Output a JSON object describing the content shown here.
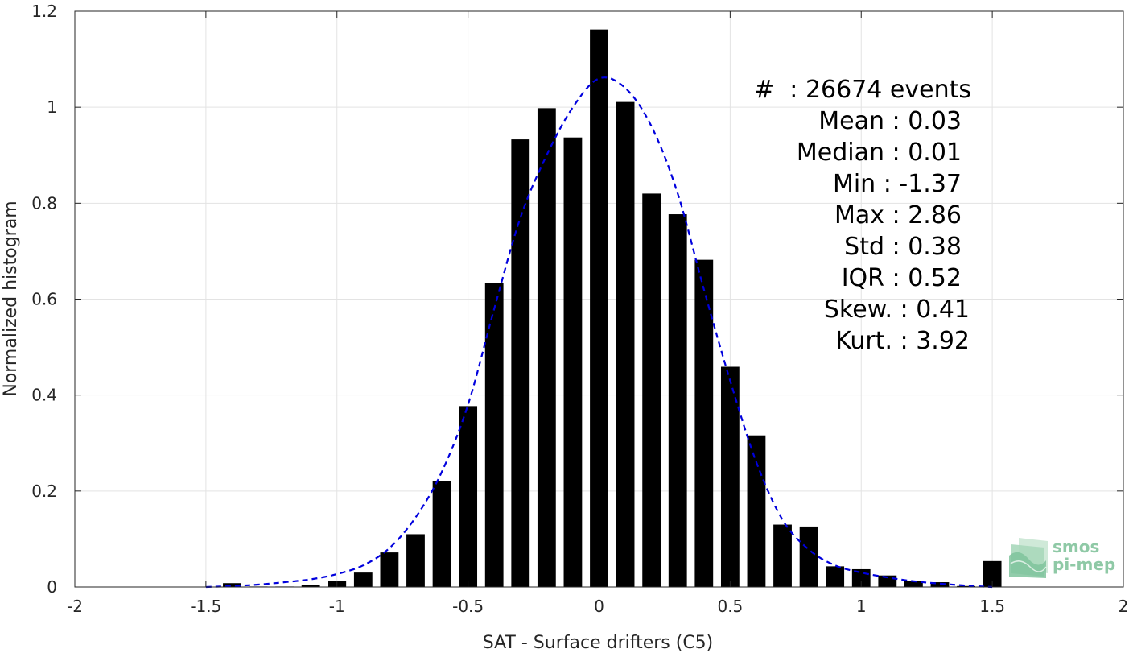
{
  "chart_data": {
    "type": "bar",
    "xlabel": "SAT - Surface drifters (C5)",
    "ylabel": "Normalized histogram",
    "xlim": [
      -2,
      2
    ],
    "ylim": [
      0,
      1.2
    ],
    "x_ticks": [
      -2,
      -1.5,
      -1,
      -0.5,
      0,
      0.5,
      1,
      1.5,
      2
    ],
    "y_ticks": [
      0,
      0.2,
      0.4,
      0.6,
      0.8,
      1,
      1.2
    ],
    "x_tick_labels": [
      "-2",
      "-1.5",
      "-1",
      "-0.5",
      "0",
      "0.5",
      "1",
      "1.5",
      "2"
    ],
    "y_tick_labels": [
      "0",
      "0.2",
      "0.4",
      "0.6",
      "0.8",
      "1",
      "1.2"
    ],
    "grid": true,
    "bar_color": "#000000",
    "bar_width": 0.07,
    "bars": [
      {
        "x": -1.4,
        "y": 0.008
      },
      {
        "x": -1.3,
        "y": 0.001
      },
      {
        "x": -1.2,
        "y": 0.001
      },
      {
        "x": -1.1,
        "y": 0.004
      },
      {
        "x": -1.0,
        "y": 0.013
      },
      {
        "x": -0.9,
        "y": 0.03
      },
      {
        "x": -0.8,
        "y": 0.072
      },
      {
        "x": -0.7,
        "y": 0.11
      },
      {
        "x": -0.6,
        "y": 0.22
      },
      {
        "x": -0.5,
        "y": 0.377
      },
      {
        "x": -0.4,
        "y": 0.634
      },
      {
        "x": -0.3,
        "y": 0.933
      },
      {
        "x": -0.2,
        "y": 0.998
      },
      {
        "x": -0.1,
        "y": 0.937
      },
      {
        "x": 0.0,
        "y": 1.162
      },
      {
        "x": 0.1,
        "y": 1.011
      },
      {
        "x": 0.2,
        "y": 0.82
      },
      {
        "x": 0.3,
        "y": 0.777
      },
      {
        "x": 0.4,
        "y": 0.682
      },
      {
        "x": 0.5,
        "y": 0.459
      },
      {
        "x": 0.6,
        "y": 0.316
      },
      {
        "x": 0.7,
        "y": 0.13
      },
      {
        "x": 0.8,
        "y": 0.126
      },
      {
        "x": 0.9,
        "y": 0.043
      },
      {
        "x": 1.0,
        "y": 0.037
      },
      {
        "x": 1.1,
        "y": 0.024
      },
      {
        "x": 1.2,
        "y": 0.013
      },
      {
        "x": 1.3,
        "y": 0.01
      },
      {
        "x": 1.4,
        "y": 0.002
      },
      {
        "x": 1.5,
        "y": 0.054
      }
    ],
    "fit_curve": {
      "style": "dashed",
      "color": "#0000dd",
      "x": [
        -1.5,
        -1.4,
        -1.3,
        -1.2,
        -1.1,
        -1.0,
        -0.9,
        -0.8,
        -0.7,
        -0.6,
        -0.5,
        -0.4,
        -0.3,
        -0.2,
        -0.1,
        0.0,
        0.1,
        0.2,
        0.3,
        0.4,
        0.5,
        0.6,
        0.7,
        0.8,
        0.9,
        1.0,
        1.1,
        1.2,
        1.3,
        1.4,
        1.5
      ],
      "y": [
        0.0,
        0.002,
        0.005,
        0.01,
        0.016,
        0.027,
        0.045,
        0.081,
        0.145,
        0.24,
        0.38,
        0.58,
        0.77,
        0.9,
        1.0,
        1.06,
        1.04,
        0.96,
        0.82,
        0.62,
        0.43,
        0.26,
        0.14,
        0.078,
        0.045,
        0.03,
        0.02,
        0.012,
        0.007,
        0.003,
        0.0
      ]
    }
  },
  "stats": [
    "#  : 26674 events",
    "Mean : 0.03",
    "Median : 0.01",
    "Min : -1.37",
    "Max : 2.86",
    "Std : 0.38",
    "IQR : 0.52",
    "Skew. : 0.41",
    "Kurt. : 3.92"
  ],
  "logo": {
    "line1": "smos",
    "line2": "pi-mep",
    "color": "#8fc9a6"
  }
}
